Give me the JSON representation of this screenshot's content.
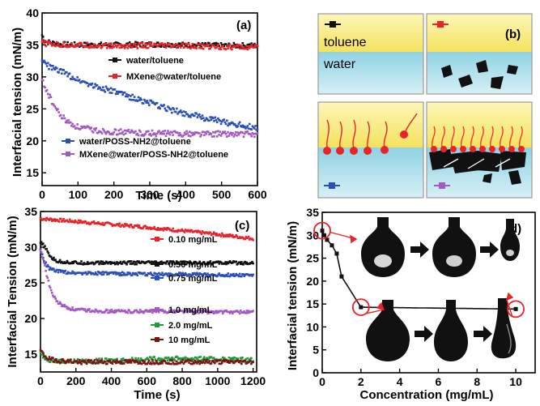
{
  "chart_data": [
    {
      "panel": "(a)",
      "type": "scatter",
      "xlabel": "Time (s)",
      "ylabel": "Interfacial tension (mN/m)",
      "xlim": [
        0,
        600
      ],
      "ylim": [
        13,
        40
      ],
      "xticks": [
        0,
        100,
        200,
        300,
        400,
        500,
        600
      ],
      "yticks": [
        15,
        20,
        25,
        30,
        35,
        40
      ],
      "legend_top": [
        "water/toluene",
        "MXene@water/toluene"
      ],
      "legend_bottom": [
        "water/POSS-NH2@toluene",
        "MXene@water/POSS-NH2@toluene"
      ],
      "series": [
        {
          "name": "water/toluene",
          "color": "#111111",
          "x": [
            0,
            10,
            50,
            100,
            200,
            300,
            400,
            500,
            600
          ],
          "y": [
            36.5,
            35.5,
            35.1,
            35.0,
            35.0,
            35.1,
            35.0,
            34.9,
            34.9
          ]
        },
        {
          "name": "MXene@water/toluene",
          "color": "#e8232a",
          "x": [
            0,
            10,
            50,
            100,
            200,
            300,
            400,
            500,
            600
          ],
          "y": [
            35.5,
            35.2,
            35.0,
            35.0,
            34.8,
            34.9,
            34.8,
            34.7,
            34.6
          ]
        },
        {
          "name": "water/POSS-NH2@toluene",
          "color": "#2a4fb8",
          "x": [
            0,
            20,
            50,
            100,
            150,
            200,
            250,
            300,
            350,
            400,
            450,
            500,
            550,
            600
          ],
          "y": [
            32.5,
            31.6,
            30.9,
            29.6,
            28.5,
            27.7,
            26.8,
            25.9,
            25.0,
            24.3,
            23.6,
            23.0,
            22.5,
            22.0
          ]
        },
        {
          "name": "MXene@water/POSS-NH2@toluene",
          "color": "#a259c4",
          "x": [
            0,
            10,
            20,
            30,
            50,
            75,
            100,
            150,
            200,
            300,
            400,
            500,
            600
          ],
          "y": [
            29.5,
            28.2,
            27.0,
            25.8,
            24.0,
            22.8,
            22.1,
            21.6,
            21.4,
            21.2,
            21.1,
            21.1,
            21.0
          ]
        }
      ]
    },
    {
      "panel": "(b)",
      "type": "diagram",
      "labels": [
        "toluene",
        "water"
      ]
    },
    {
      "panel": "(c)",
      "type": "scatter",
      "xlabel": "Time (s)",
      "ylabel": "Interfacial Tension (mN/m)",
      "xlim": [
        0,
        1220
      ],
      "ylim": [
        12.5,
        35
      ],
      "xticks": [
        0,
        200,
        400,
        600,
        800,
        1000,
        1200
      ],
      "yticks": [
        15,
        20,
        25,
        30,
        35
      ],
      "series": [
        {
          "name": "0.10 mg/mL",
          "color": "#e8232a",
          "x": [
            0,
            100,
            200,
            400,
            600,
            800,
            1000,
            1200
          ],
          "y": [
            34.0,
            33.8,
            33.6,
            33.2,
            32.8,
            32.3,
            31.8,
            31.2
          ]
        },
        {
          "name": "0.50 mg/mL",
          "color": "#111111",
          "x": [
            0,
            20,
            40,
            60,
            80,
            100,
            150,
            200,
            400,
            600,
            800,
            1000,
            1200
          ],
          "y": [
            30.6,
            30.2,
            29.3,
            28.6,
            28.2,
            28.0,
            27.9,
            27.8,
            27.8,
            27.8,
            27.8,
            27.8,
            27.8
          ]
        },
        {
          "name": "0.75 mg/mL",
          "color": "#2a4fb8",
          "x": [
            0,
            20,
            50,
            100,
            200,
            400,
            600,
            800,
            1000,
            1200
          ],
          "y": [
            29.7,
            28.0,
            27.0,
            26.6,
            26.4,
            26.3,
            26.2,
            26.2,
            26.1,
            26.1
          ]
        },
        {
          "name": "1.0 mg/mL",
          "color": "#a259c4",
          "x": [
            0,
            20,
            40,
            70,
            100,
            150,
            200,
            300,
            400,
            600,
            800,
            1000,
            1200
          ],
          "y": [
            29.5,
            28.0,
            25.5,
            23.2,
            22.2,
            21.5,
            21.2,
            21.1,
            21.0,
            21.0,
            21.0,
            20.9,
            20.9
          ]
        },
        {
          "name": "2.0 mg/mL",
          "color": "#1f9a3b",
          "x": [
            0,
            20,
            50,
            100,
            200,
            400,
            600,
            800,
            1000,
            1200
          ],
          "y": [
            15.2,
            14.6,
            14.2,
            14.0,
            14.0,
            14.1,
            14.3,
            14.4,
            14.3,
            14.2
          ]
        },
        {
          "name": "10 mg/mL",
          "color": "#7a1414",
          "x": [
            0,
            20,
            50,
            100,
            200,
            400,
            600,
            800,
            1000,
            1200
          ],
          "y": [
            15.5,
            14.8,
            14.3,
            14.1,
            13.9,
            13.9,
            13.9,
            13.9,
            13.9,
            13.9
          ]
        }
      ]
    },
    {
      "panel": "(d)",
      "type": "line",
      "xlabel": "Concentration (mg/mL)",
      "ylabel": "Interfacial tension (mN/m)",
      "xlim": [
        0,
        11
      ],
      "ylim": [
        0,
        35
      ],
      "xticks": [
        0,
        2,
        4,
        6,
        8,
        10
      ],
      "yticks": [
        0,
        5,
        10,
        15,
        20,
        25,
        30,
        35
      ],
      "series": [
        {
          "name": "",
          "color": "#111111",
          "x": [
            0,
            0.1,
            0.25,
            0.5,
            0.75,
            1.0,
            2.0,
            10
          ],
          "y": [
            31.0,
            30.0,
            29.0,
            27.8,
            26.0,
            21.0,
            14.3,
            13.9
          ]
        }
      ]
    }
  ]
}
